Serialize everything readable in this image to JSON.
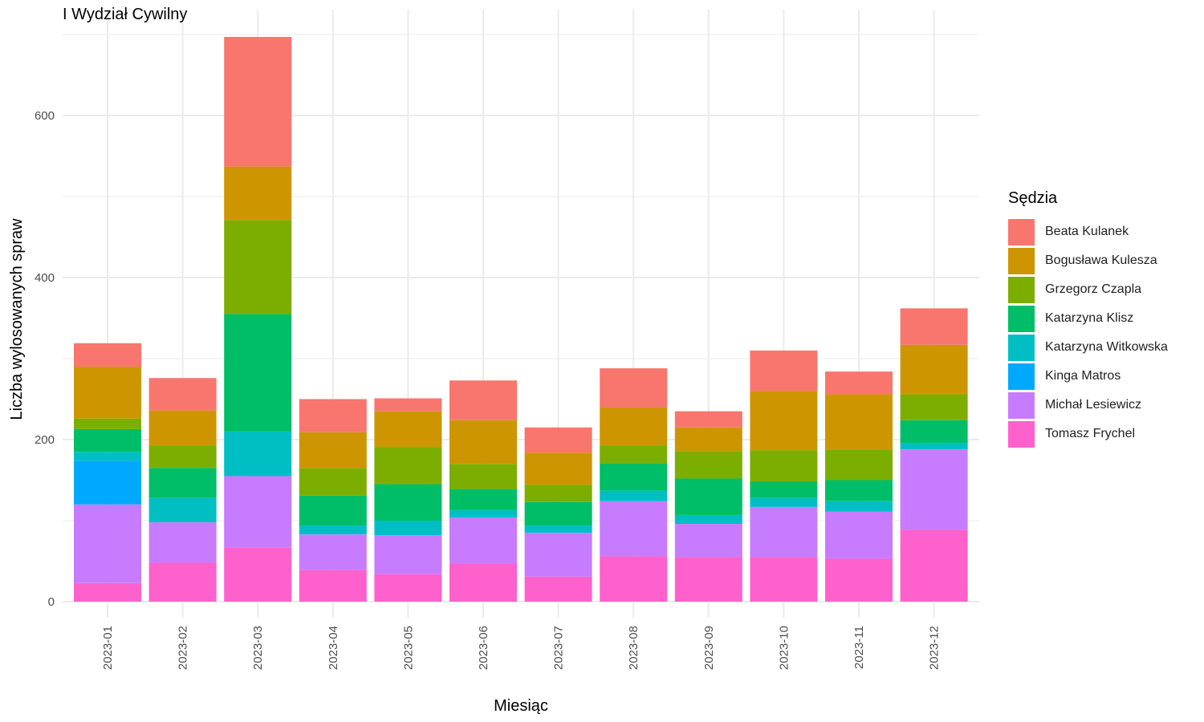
{
  "chart_data": {
    "type": "bar",
    "stacked": true,
    "title": "I Wydział Cywilny",
    "xlabel": "Miesiąc",
    "ylabel": "Liczba wylosowanych spraw",
    "ylim": [
      0,
      700
    ],
    "yticks": [
      0,
      200,
      400,
      600
    ],
    "grid": true,
    "legend_title": "Sędzia",
    "legend_position": "right",
    "categories": [
      "2023-01",
      "2023-02",
      "2023-03",
      "2023-04",
      "2023-05",
      "2023-06",
      "2023-07",
      "2023-08",
      "2023-09",
      "2023-10",
      "2023-11",
      "2023-12"
    ],
    "series": [
      {
        "name": "Beata Kulanek",
        "color": "#F8766D",
        "values": [
          29,
          40,
          160,
          41,
          16,
          49,
          31,
          48,
          20,
          50,
          28,
          45
        ]
      },
      {
        "name": "Bogusława Kulesza",
        "color": "#CD9600",
        "values": [
          64,
          43,
          66,
          44,
          44,
          54,
          40,
          47,
          29,
          73,
          68,
          61
        ]
      },
      {
        "name": "Grzegorz Czapla",
        "color": "#7CAE00",
        "values": [
          13,
          28,
          116,
          34,
          46,
          31,
          21,
          22,
          34,
          39,
          38,
          32
        ]
      },
      {
        "name": "Katarzyna Klisz",
        "color": "#00BE67",
        "values": [
          28,
          37,
          145,
          37,
          45,
          26,
          29,
          34,
          45,
          20,
          26,
          28
        ]
      },
      {
        "name": "Katarzyna Witkowska",
        "color": "#00BFC4",
        "values": [
          11,
          30,
          55,
          11,
          18,
          9,
          9,
          13,
          11,
          11,
          13,
          8
        ]
      },
      {
        "name": "Kinga Matros",
        "color": "#00A9FF",
        "values": [
          54,
          0,
          0,
          0,
          0,
          0,
          0,
          0,
          0,
          0,
          0,
          0
        ]
      },
      {
        "name": "Michał Lesiewicz",
        "color": "#C77CFF",
        "values": [
          97,
          50,
          88,
          44,
          48,
          57,
          54,
          68,
          41,
          62,
          58,
          99
        ]
      },
      {
        "name": "Tomasz Frychel",
        "color": "#FF61CC",
        "values": [
          23,
          48,
          67,
          39,
          34,
          47,
          31,
          56,
          55,
          55,
          53,
          89
        ]
      }
    ]
  }
}
